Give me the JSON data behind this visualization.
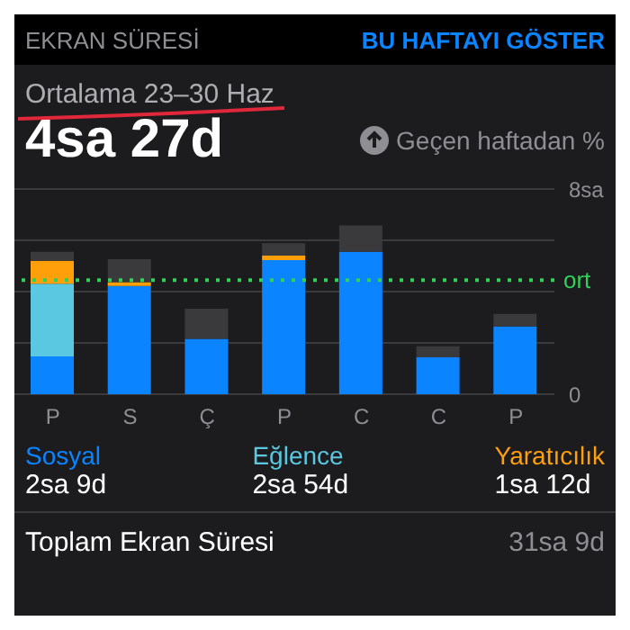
{
  "chart_data": {
    "type": "bar",
    "title": "Ortalama 23–30 Haz",
    "subtitle": "4sa 27d",
    "stacked": true,
    "categories": [
      "P",
      "S",
      "Ç",
      "P",
      "C",
      "C",
      "P"
    ],
    "series": [
      {
        "name": "Sosyal",
        "color": "#0a84ff",
        "values": [
          1.47,
          4.22,
          2.16,
          5.23,
          5.55,
          1.44,
          2.64
        ]
      },
      {
        "name": "Eğlence",
        "color": "#5ac8e0",
        "values": [
          2.84,
          null,
          null,
          null,
          null,
          null,
          null
        ]
      },
      {
        "name": "Yaratıcılık",
        "color": "#ff9f0a",
        "values": [
          0.89,
          0.15,
          null,
          0.17,
          null,
          null,
          null
        ]
      },
      {
        "color": "#3a3a3c",
        "values": [
          0.35,
          0.89,
          1.17,
          0.49,
          1.03,
          0.43,
          0.49
        ]
      }
    ],
    "ylim": [
      0,
      8
    ],
    "yticks": [
      0,
      {
        "value": 2,
        "label": null
      },
      {
        "value": 4,
        "label": null
      },
      {
        "value": 6,
        "label": null
      },
      {
        "value": 8,
        "label": "8sa"
      }
    ],
    "grid": "y",
    "ref_lines": [
      {
        "axis": "y",
        "value": 4.45,
        "label": "ort",
        "color": "#30d158",
        "line_style": "dotted"
      }
    ],
    "legend": "bottom",
    "annotations": [
      "EKRAN SÜRESİ",
      "BU HAFTAYI GÖSTER",
      "Geçen haftadan %",
      "2sa 9d",
      "2sa 54d",
      "1sa 12d",
      "Toplam Ekran Süresi",
      "31sa 9d"
    ]
  }
}
